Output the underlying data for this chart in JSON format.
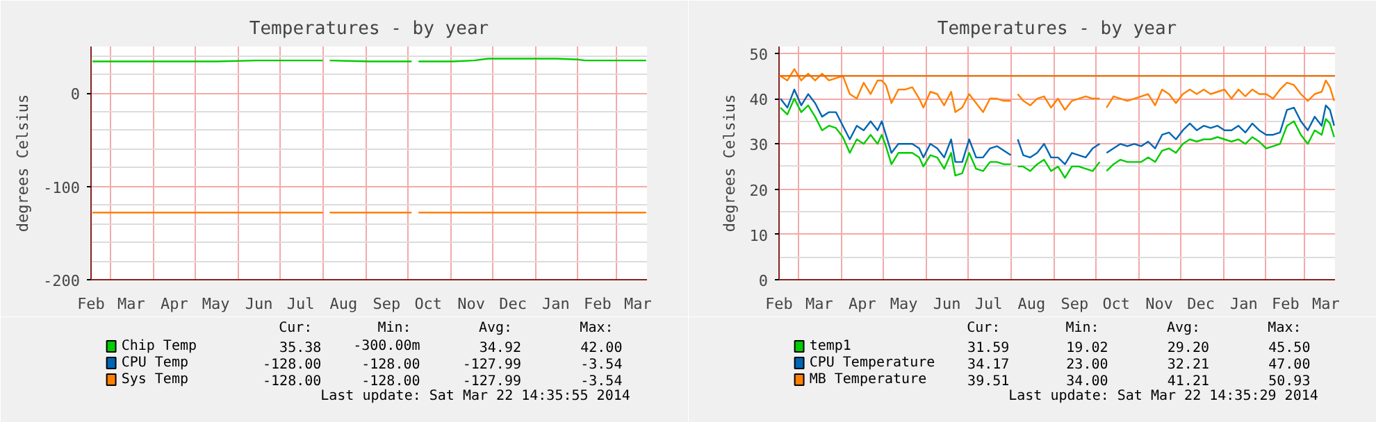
{
  "chart_data": [
    {
      "type": "line",
      "title": "Temperatures - by year",
      "ylabel": "degrees Celsius",
      "x": [
        "2013-02-16",
        "2013-03-18",
        "2013-04-17",
        "2013-05-17",
        "2013-06-14",
        "2013-07-17",
        "2013-08-01",
        "2013-08-03",
        "2013-08-06",
        "2013-09-04",
        "2013-10-04",
        "2013-10-06",
        "2013-10-09",
        "2013-11-03",
        "2013-11-18",
        "2013-11-28",
        "2013-12-28",
        "2014-01-17",
        "2014-02-01",
        "2014-02-06",
        "2014-02-26",
        "2014-03-22"
      ],
      "series": [
        {
          "name": "Chip Temp",
          "color": "#00cc00",
          "values": [
            34,
            34,
            34,
            34,
            35,
            35,
            35,
            null,
            35,
            34,
            34,
            null,
            34,
            34,
            35,
            37,
            37,
            37,
            36,
            35,
            35,
            35
          ]
        },
        {
          "name": "CPU Temp",
          "color": "#0066b3",
          "values": [
            null,
            null,
            null,
            null,
            null,
            null,
            null,
            null,
            null,
            null,
            null,
            null,
            null,
            null,
            null,
            null,
            null,
            null,
            null,
            null,
            null,
            null
          ]
        },
        {
          "name": "Sys Temp",
          "color": "#ff8000",
          "values": [
            -128,
            -128,
            -128,
            -128,
            -128,
            -128,
            -128,
            null,
            -128,
            -128,
            -128,
            null,
            -128,
            -128,
            -128,
            -128,
            -128,
            -128,
            -128,
            -128,
            -128,
            -128
          ]
        }
      ],
      "xlim": [
        "2013-02-15",
        "2014-03-22T14:35"
      ],
      "ylim": [
        -200,
        50
      ],
      "xticks": [
        {
          "value": "2013-02-15",
          "label": "Feb"
        },
        {
          "value": "2013-03-01",
          "label": null
        },
        {
          "value": "2013-03-16",
          "label": "Mar"
        },
        {
          "value": "2013-04-01",
          "label": null
        },
        {
          "value": "2013-04-16",
          "label": "Apr"
        },
        {
          "value": "2013-05-01",
          "label": null
        },
        {
          "value": "2013-05-16",
          "label": "May"
        },
        {
          "value": "2013-06-01",
          "label": null
        },
        {
          "value": "2013-06-16",
          "label": "Jun"
        },
        {
          "value": "2013-07-01",
          "label": null
        },
        {
          "value": "2013-07-16",
          "label": "Jul"
        },
        {
          "value": "2013-08-01",
          "label": null
        },
        {
          "value": "2013-08-16",
          "label": "Aug"
        },
        {
          "value": "2013-09-01",
          "label": null
        },
        {
          "value": "2013-09-16",
          "label": "Sep"
        },
        {
          "value": "2013-10-01",
          "label": null
        },
        {
          "value": "2013-10-16",
          "label": "Oct"
        },
        {
          "value": "2013-11-01",
          "label": null
        },
        {
          "value": "2013-11-16",
          "label": "Nov"
        },
        {
          "value": "2013-12-01",
          "label": null
        },
        {
          "value": "2013-12-16",
          "label": "Dec"
        },
        {
          "value": "2014-01-01",
          "label": null
        },
        {
          "value": "2014-01-16",
          "label": "Jan"
        },
        {
          "value": "2014-02-01",
          "label": null
        },
        {
          "value": "2014-02-15",
          "label": "Feb"
        },
        {
          "value": "2014-03-01",
          "label": null
        },
        {
          "value": "2014-03-16",
          "label": "Mar"
        }
      ],
      "yticks": [
        -200,
        {
          "value": -180,
          "label": null
        },
        {
          "value": -160,
          "label": null
        },
        {
          "value": -140,
          "label": null
        },
        {
          "value": -120,
          "label": null
        },
        -100,
        {
          "value": -80,
          "label": null
        },
        {
          "value": -60,
          "label": null
        },
        {
          "value": -40,
          "label": null
        },
        {
          "value": -20,
          "label": null
        },
        0,
        {
          "value": 20,
          "label": null
        },
        {
          "value": 40,
          "label": null
        }
      ],
      "grid": true,
      "legend": "bottom",
      "annotations": [
        "Cur:",
        "Min:",
        "Avg:",
        "Max:",
        "35.38",
        "-300.00m",
        "34.92",
        "42.00",
        "-128.00",
        "-128.00",
        "-127.99",
        "-3.54",
        "-128.00",
        "-128.00",
        "-127.99",
        "-3.54",
        "Last update: Sat Mar 22 14:35:55 2014"
      ]
    },
    {
      "type": "line",
      "title": "Temperatures - by year",
      "ylabel": "degrees Celsius",
      "x": [
        "2013-02-16",
        "2013-02-21",
        "2013-02-26",
        "2013-03-03",
        "2013-03-08",
        "2013-03-13",
        "2013-03-18",
        "2013-03-23",
        "2013-03-28",
        "2013-04-02",
        "2013-04-07",
        "2013-04-12",
        "2013-04-17",
        "2013-04-22",
        "2013-04-27",
        "2013-04-30",
        "2013-05-03",
        "2013-05-07",
        "2013-05-12",
        "2013-05-17",
        "2013-05-22",
        "2013-05-27",
        "2013-05-30",
        "2013-06-04",
        "2013-06-09",
        "2013-06-14",
        "2013-06-19",
        "2013-06-22",
        "2013-06-27",
        "2013-07-02",
        "2013-07-07",
        "2013-07-12",
        "2013-07-17",
        "2013-07-22",
        "2013-07-27",
        "2013-08-01",
        "2013-08-03",
        "2013-08-06",
        "2013-08-10",
        "2013-08-15",
        "2013-08-20",
        "2013-08-25",
        "2013-08-30",
        "2013-09-04",
        "2013-09-09",
        "2013-09-14",
        "2013-09-19",
        "2013-09-24",
        "2013-09-29",
        "2013-10-04",
        "2013-10-06",
        "2013-10-09",
        "2013-10-14",
        "2013-10-19",
        "2013-10-24",
        "2013-10-29",
        "2013-11-03",
        "2013-11-08",
        "2013-11-13",
        "2013-11-18",
        "2013-11-23",
        "2013-11-28",
        "2013-12-03",
        "2013-12-08",
        "2013-12-13",
        "2013-12-18",
        "2013-12-23",
        "2013-12-28",
        "2014-01-02",
        "2014-01-07",
        "2014-01-12",
        "2014-01-17",
        "2014-01-22",
        "2014-01-27",
        "2014-02-01",
        "2014-02-06",
        "2014-02-11",
        "2014-02-16",
        "2014-02-21",
        "2014-02-26",
        "2014-03-03",
        "2014-03-08",
        "2014-03-13",
        "2014-03-16",
        "2014-03-19",
        "2014-03-22"
      ],
      "series": [
        {
          "name": "temp1",
          "color": "#00cc00",
          "values": [
            38,
            36.5,
            40,
            37,
            38.5,
            36,
            33,
            34,
            33.5,
            31.5,
            28,
            31,
            30,
            32,
            30,
            32,
            29.5,
            25.5,
            28,
            28,
            28,
            27,
            25,
            27.5,
            27,
            24.5,
            28,
            23,
            23.5,
            28,
            24.5,
            24,
            26,
            26,
            25.5,
            25.5,
            null,
            25,
            25,
            24,
            25.5,
            26.5,
            24,
            25,
            22.5,
            25,
            25,
            24.5,
            24,
            26,
            null,
            24,
            25.5,
            26.5,
            26,
            26,
            26,
            27,
            26,
            28.5,
            29,
            28,
            30,
            31,
            30.5,
            31,
            31,
            31.5,
            31,
            30.5,
            31,
            30,
            31.5,
            30.5,
            29,
            29.5,
            30,
            34,
            35,
            32,
            30,
            33,
            32,
            35.5,
            34.5,
            31.5
          ]
        },
        {
          "name": "CPU Temperature",
          "color": "#0066b3",
          "values": [
            40,
            38,
            42,
            38.5,
            41,
            39,
            36,
            37,
            37,
            34,
            31,
            34,
            33,
            35,
            33,
            35,
            32,
            28,
            30,
            30,
            30,
            29,
            27,
            30,
            29,
            27,
            31,
            26,
            26,
            31,
            27,
            27,
            29,
            29.5,
            28.5,
            27.5,
            null,
            31,
            27.5,
            27,
            28,
            30,
            27,
            27,
            25.5,
            28,
            27.5,
            27,
            29,
            30,
            null,
            28,
            29,
            30,
            29.5,
            30,
            29.5,
            30.5,
            29,
            32,
            32.5,
            31,
            33,
            34.5,
            33,
            34,
            33.5,
            34,
            33,
            33,
            34,
            32.5,
            34.5,
            33,
            32,
            32,
            32.5,
            37.5,
            38,
            35,
            33,
            36,
            34,
            38.5,
            37.5,
            34
          ]
        },
        {
          "name": "MB Temperature",
          "color": "#ff8000",
          "values": [
            45,
            44,
            46.5,
            44,
            45.5,
            44,
            45.5,
            44,
            44.5,
            45,
            41,
            40,
            43.5,
            41,
            44,
            44,
            43,
            39,
            42,
            42,
            42.5,
            40,
            38,
            41.5,
            41,
            38.5,
            41.5,
            37,
            38,
            41,
            39,
            37,
            40,
            40,
            39.5,
            39.5,
            null,
            41,
            39.5,
            38.5,
            40,
            40.5,
            38,
            40,
            37.5,
            39.5,
            40,
            40.5,
            40,
            40,
            null,
            38,
            40.5,
            40,
            39.5,
            40,
            40.5,
            41,
            38.5,
            42,
            41,
            39,
            41,
            42,
            41,
            42,
            41,
            41.5,
            42,
            40,
            42,
            40.5,
            42,
            41,
            41,
            40,
            42,
            43.5,
            43,
            41,
            39.5,
            41,
            41.5,
            44,
            42.5,
            39.5
          ]
        }
      ],
      "xlim": [
        "2013-02-15",
        "2014-03-22T14:35"
      ],
      "ylim": [
        0,
        51.5
      ],
      "xticks": [
        {
          "value": "2013-02-15",
          "label": "Feb"
        },
        {
          "value": "2013-03-01",
          "label": null
        },
        {
          "value": "2013-03-16",
          "label": "Mar"
        },
        {
          "value": "2013-04-01",
          "label": null
        },
        {
          "value": "2013-04-16",
          "label": "Apr"
        },
        {
          "value": "2013-05-01",
          "label": null
        },
        {
          "value": "2013-05-16",
          "label": "May"
        },
        {
          "value": "2013-06-01",
          "label": null
        },
        {
          "value": "2013-06-16",
          "label": "Jun"
        },
        {
          "value": "2013-07-01",
          "label": null
        },
        {
          "value": "2013-07-16",
          "label": "Jul"
        },
        {
          "value": "2013-08-01",
          "label": null
        },
        {
          "value": "2013-08-16",
          "label": "Aug"
        },
        {
          "value": "2013-09-01",
          "label": null
        },
        {
          "value": "2013-09-16",
          "label": "Sep"
        },
        {
          "value": "2013-10-01",
          "label": null
        },
        {
          "value": "2013-10-16",
          "label": "Oct"
        },
        {
          "value": "2013-11-01",
          "label": null
        },
        {
          "value": "2013-11-16",
          "label": "Nov"
        },
        {
          "value": "2013-12-01",
          "label": null
        },
        {
          "value": "2013-12-16",
          "label": "Dec"
        },
        {
          "value": "2014-01-01",
          "label": null
        },
        {
          "value": "2014-01-16",
          "label": "Jan"
        },
        {
          "value": "2014-02-01",
          "label": null
        },
        {
          "value": "2014-02-15",
          "label": "Feb"
        },
        {
          "value": "2014-03-01",
          "label": null
        },
        {
          "value": "2014-03-16",
          "label": "Mar"
        }
      ],
      "yticks": [
        0,
        {
          "value": 5,
          "label": null
        },
        10,
        {
          "value": 15,
          "label": null
        },
        20,
        {
          "value": 25,
          "label": null
        },
        30,
        {
          "value": 35,
          "label": null
        },
        40,
        {
          "value": 45,
          "label": null
        },
        50
      ],
      "ref_lines": [
        {
          "axis": "y",
          "value": 45,
          "color": "#e86a00"
        }
      ],
      "grid": true,
      "legend": "bottom",
      "annotations": [
        "Cur:",
        "Min:",
        "Avg:",
        "Max:",
        "31.59",
        "19.02",
        "29.20",
        "45.50",
        "34.17",
        "23.00",
        "32.21",
        "47.00",
        "39.51",
        "34.00",
        "41.21",
        "50.93",
        "Last update: Sat Mar 22 14:35:29 2014"
      ]
    }
  ]
}
